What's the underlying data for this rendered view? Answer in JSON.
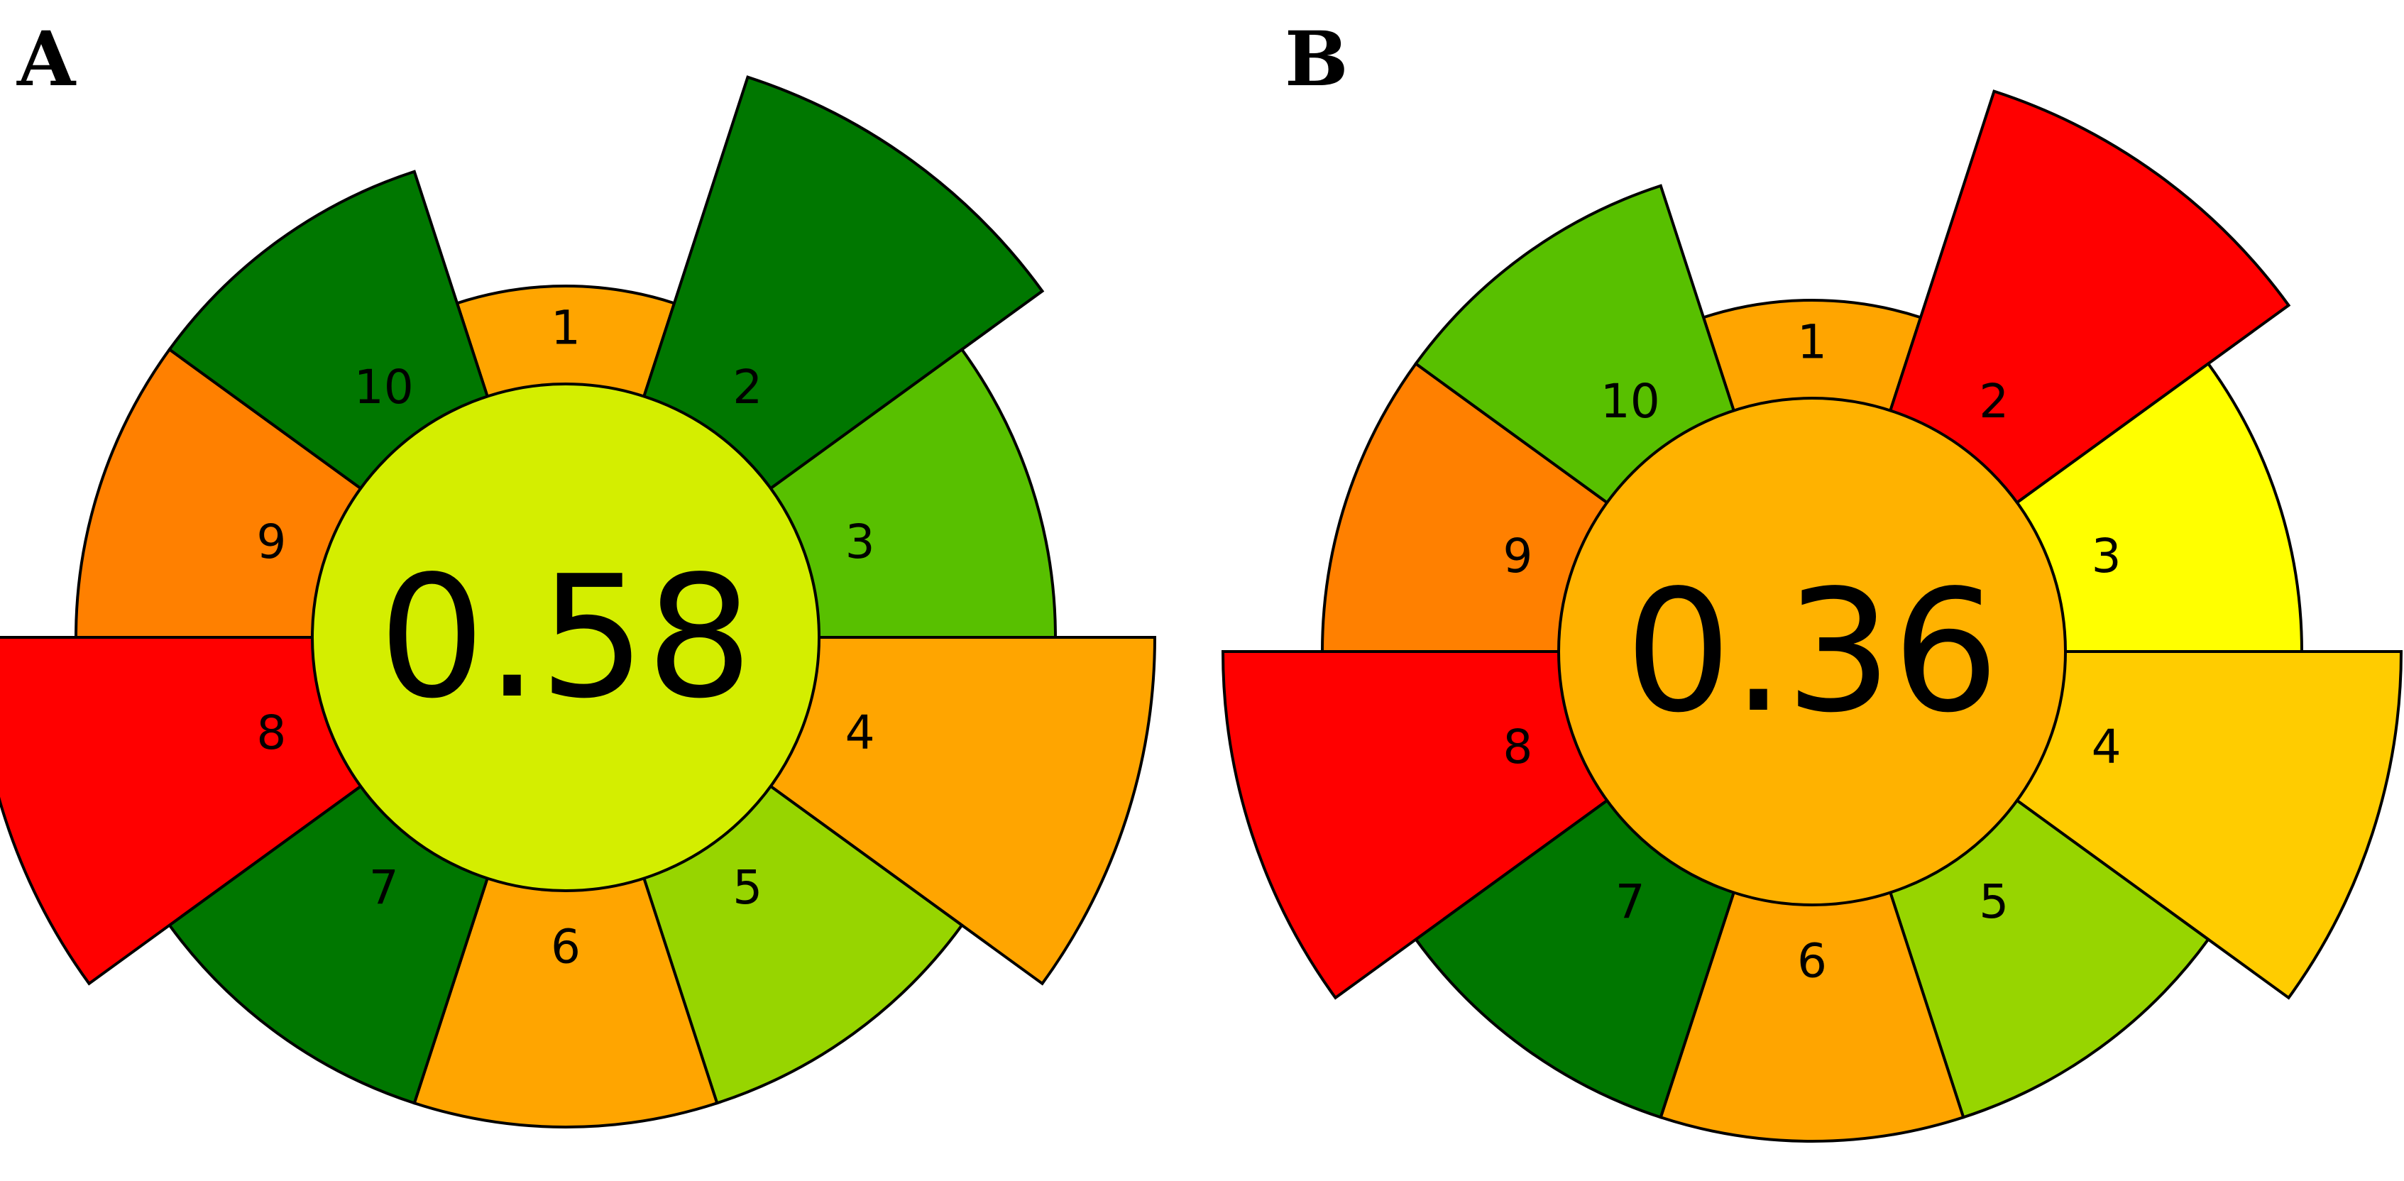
{
  "panels": [
    {
      "id": "A",
      "letter": "A",
      "score": "0.58",
      "center_color": "#d4ee00",
      "segments": [
        {
          "number": "1",
          "color": "#ffa500",
          "level": 1
        },
        {
          "number": "2",
          "color": "#007700",
          "level": 3
        },
        {
          "number": "3",
          "color": "#58c000",
          "level": 2
        },
        {
          "number": "4",
          "color": "#ffa500",
          "level": 3
        },
        {
          "number": "5",
          "color": "#97d500",
          "level": 2
        },
        {
          "number": "6",
          "color": "#ffa500",
          "level": 2
        },
        {
          "number": "7",
          "color": "#007700",
          "level": 2
        },
        {
          "number": "8",
          "color": "#ff0000",
          "level": 3
        },
        {
          "number": "9",
          "color": "#ff8000",
          "level": 2
        },
        {
          "number": "10",
          "color": "#007700",
          "level": 2
        }
      ]
    },
    {
      "id": "B",
      "letter": "B",
      "score": "0.36",
      "center_color": "#ffb200",
      "segments": [
        {
          "number": "1",
          "color": "#ffa500",
          "level": 1
        },
        {
          "number": "2",
          "color": "#ff0000",
          "level": 3
        },
        {
          "number": "3",
          "color": "#ffff00",
          "level": 2
        },
        {
          "number": "4",
          "color": "#ffcc00",
          "level": 3
        },
        {
          "number": "5",
          "color": "#97d500",
          "level": 2
        },
        {
          "number": "6",
          "color": "#ffa500",
          "level": 2
        },
        {
          "number": "7",
          "color": "#007700",
          "level": 2
        },
        {
          "number": "8",
          "color": "#ff0000",
          "level": 3
        },
        {
          "number": "9",
          "color": "#ff8000",
          "level": 2
        },
        {
          "number": "10",
          "color": "#58c000",
          "level": 2
        }
      ]
    }
  ]
}
